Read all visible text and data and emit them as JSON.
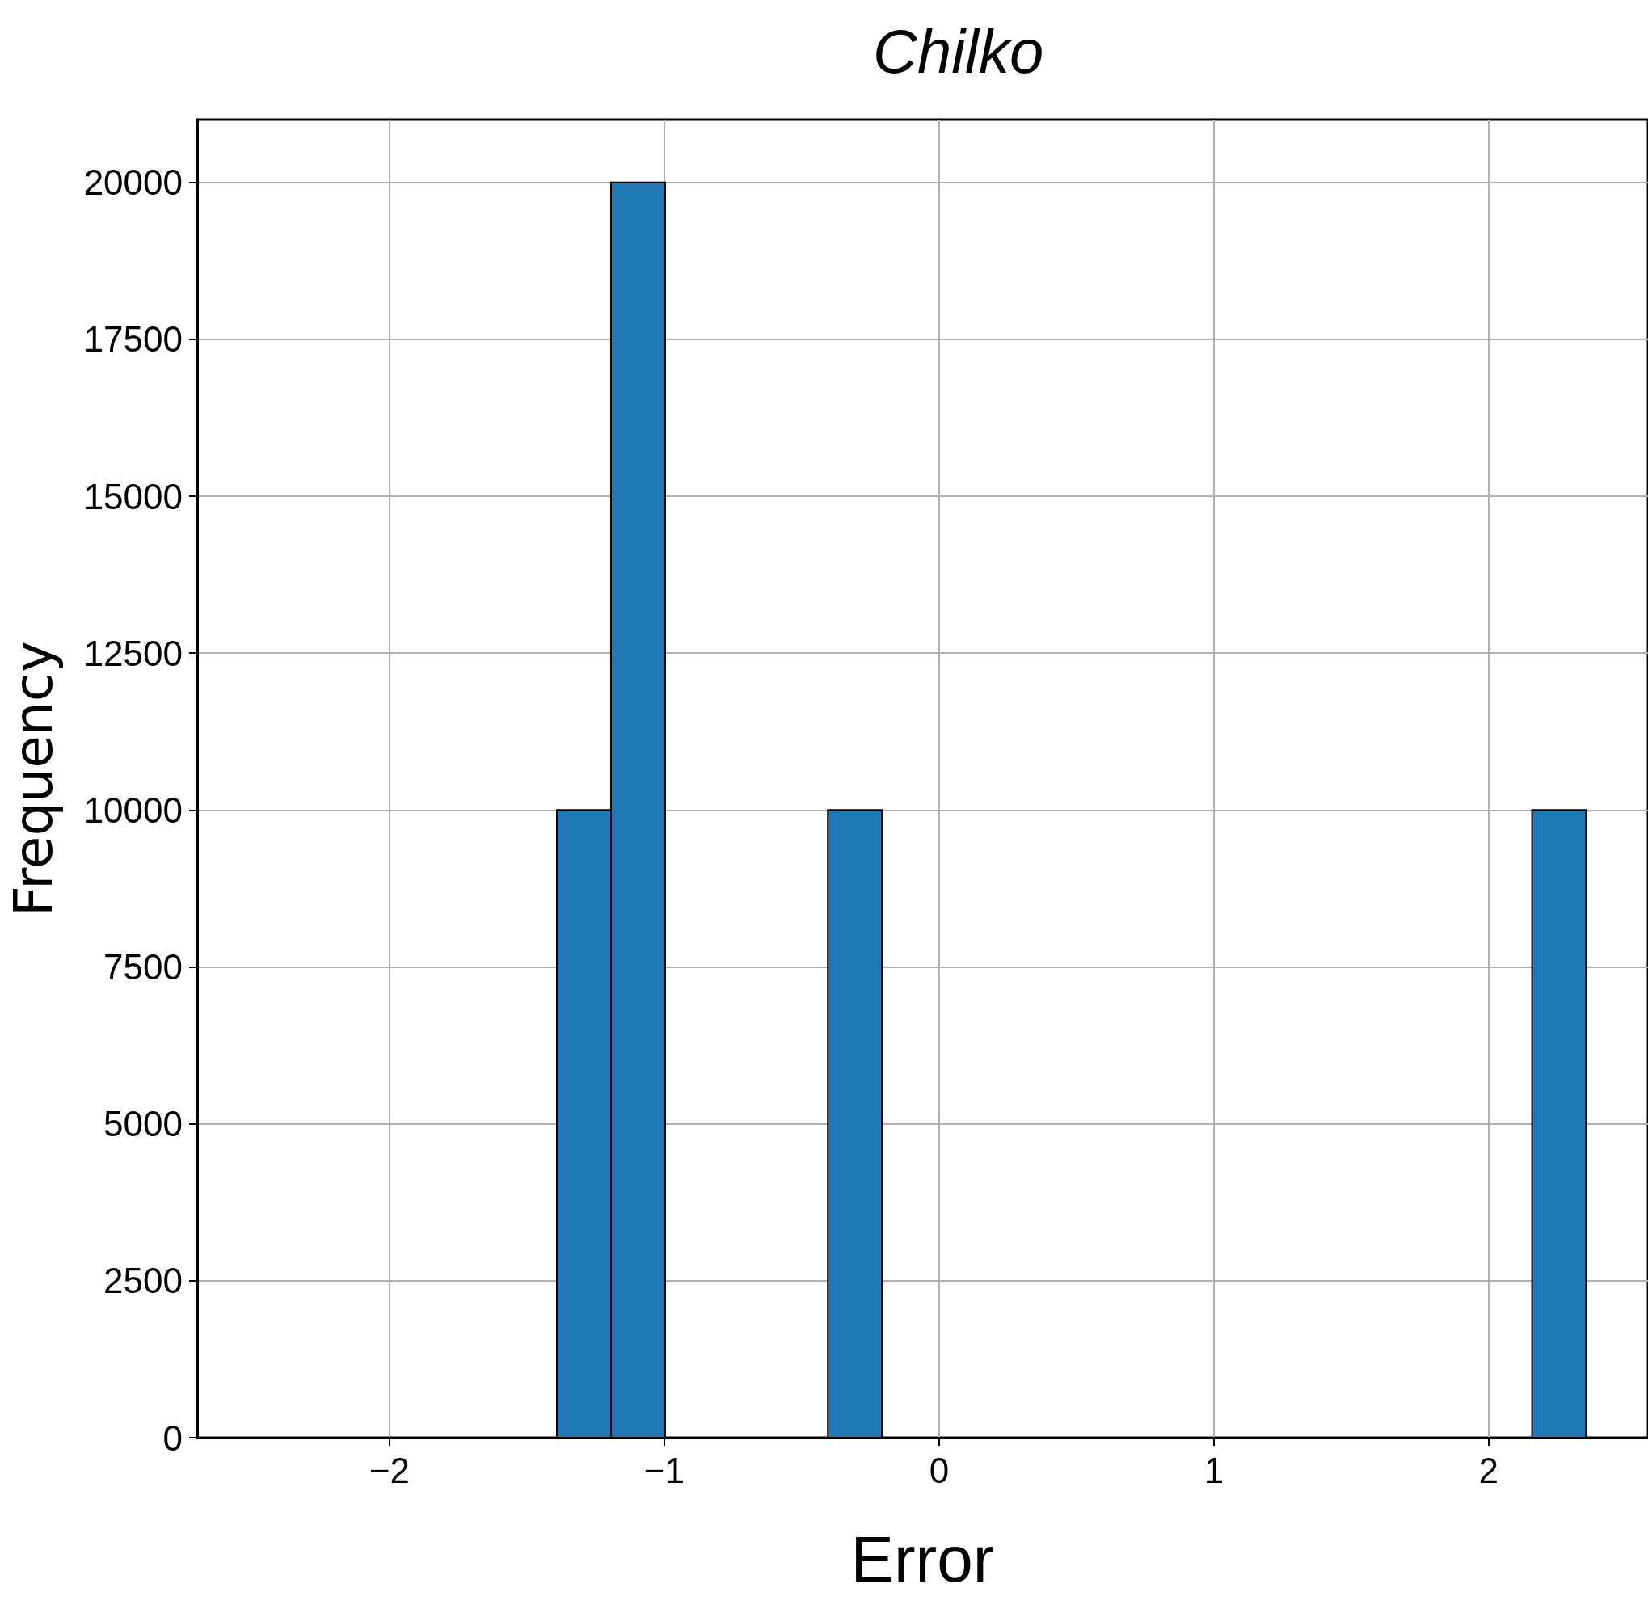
{
  "chart_data": {
    "type": "histogram",
    "title": "Chilko",
    "xlabel": "Error",
    "ylabel": "Frequency",
    "bins": [
      -1.588,
      -1.391,
      -1.194,
      -0.997,
      -0.799,
      -0.602,
      -0.405,
      -0.208,
      -0.011,
      0.186,
      0.383,
      0.581,
      0.778,
      0.975,
      1.172,
      1.369,
      1.566,
      1.764,
      1.961,
      2.158,
      2.355
    ],
    "values": [
      0,
      10000,
      20000,
      0,
      0,
      0,
      10000,
      0,
      0,
      0,
      0,
      0,
      0,
      0,
      0,
      0,
      0,
      0,
      0,
      10000
    ],
    "color": "#1f77b4",
    "xlim": [
      -2.7,
      2.58
    ],
    "xticks": [
      {
        "value": -2,
        "label": "−2"
      },
      {
        "value": -1,
        "label": "−1"
      },
      0,
      1,
      2
    ],
    "ylim": [
      0,
      21000
    ],
    "yticks": [
      0,
      2500,
      5000,
      7500,
      10000,
      12500,
      15000,
      17500,
      20000
    ],
    "grid": true
  }
}
